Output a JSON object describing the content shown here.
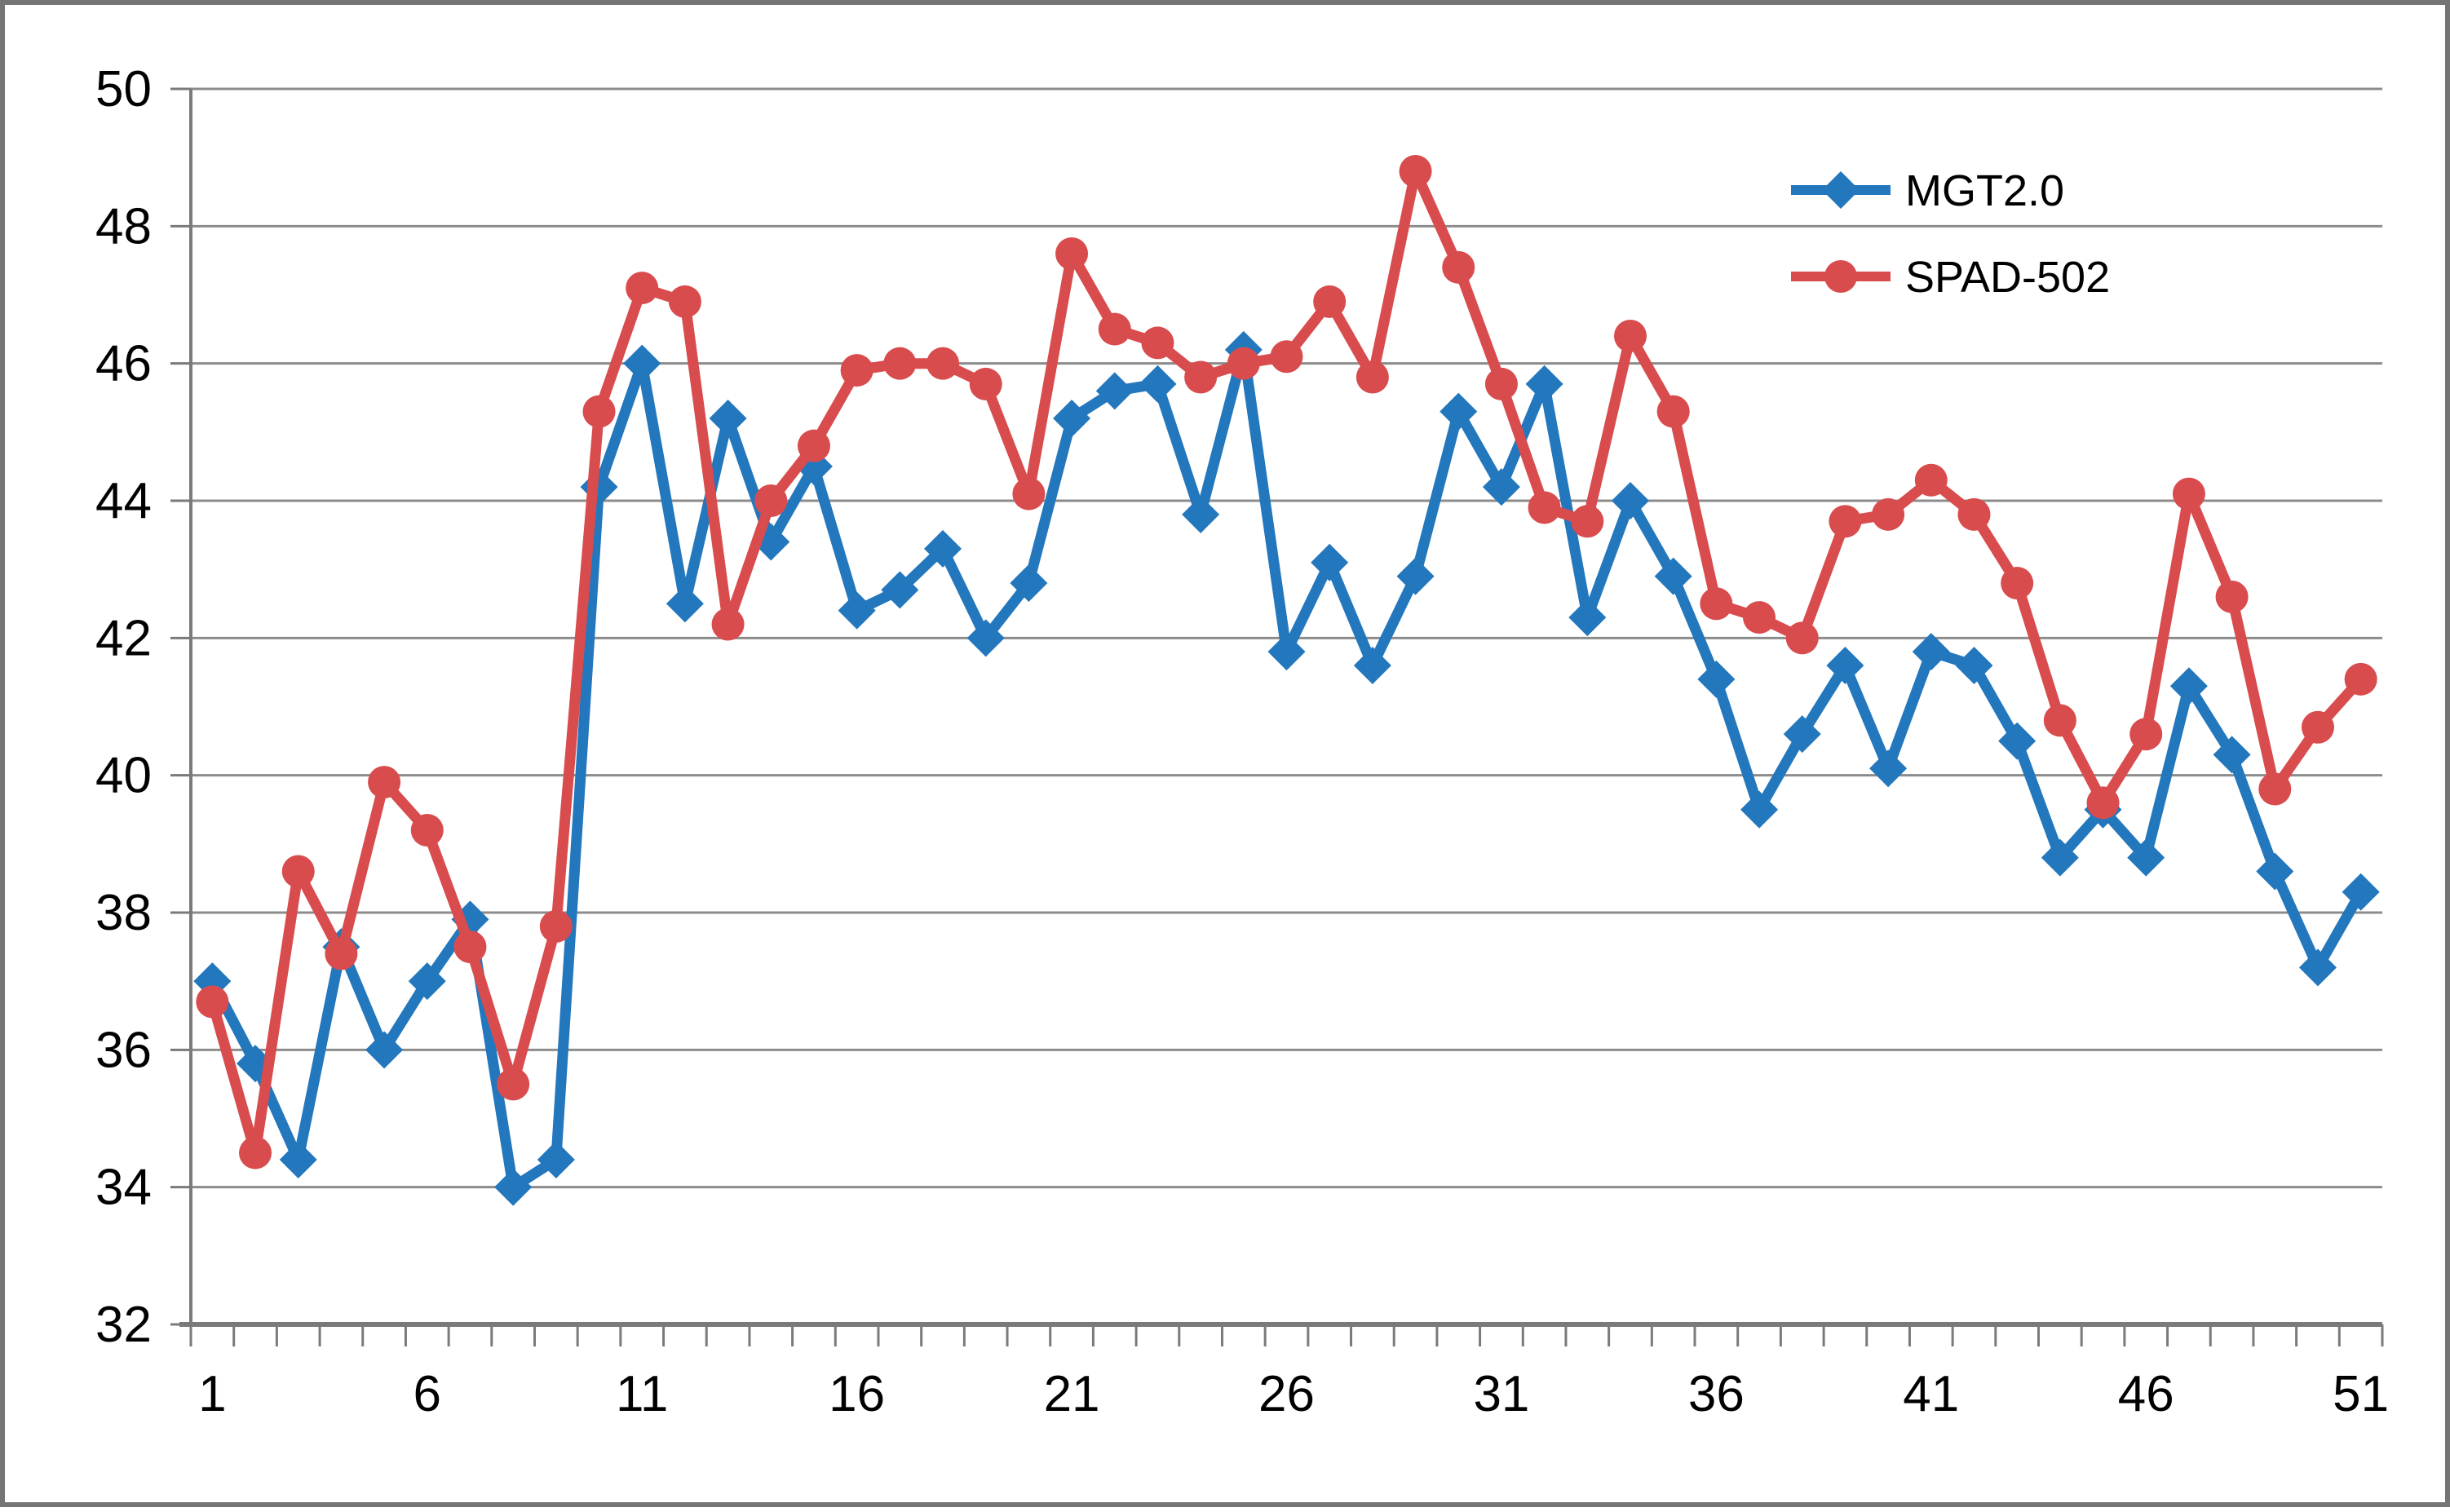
{
  "chart_data": {
    "type": "line",
    "title": "",
    "xlabel": "",
    "ylabel": "",
    "ylim": [
      32,
      50
    ],
    "y_tick_step": 2,
    "grid": "horizontal",
    "x_count": 51,
    "x_axis_tick_positions": [
      1,
      6,
      11,
      16,
      21,
      26,
      31,
      36,
      41,
      46,
      51
    ],
    "x_axis_tick_labels": [
      "1",
      "6",
      "11",
      "16",
      "21",
      "26",
      "31",
      "36",
      "41",
      "46",
      "51"
    ],
    "y_ticks": [
      32,
      34,
      36,
      38,
      40,
      42,
      44,
      46,
      48,
      50
    ],
    "y_axis_tick_labels": [
      "32",
      "34",
      "36",
      "38",
      "40",
      "42",
      "44",
      "46",
      "48",
      "50"
    ],
    "legend": {
      "position": "inside-upper-right",
      "items": [
        "MGT2.0",
        "SPAD-502"
      ]
    },
    "colors": {
      "mgt_blue": "#2377bd",
      "spad_red": "#d94c4e",
      "gridline": "#8c8c8c",
      "axis": "#7a7a7a",
      "tick_label": "#000000"
    },
    "series": [
      {
        "name": "MGT2.0",
        "color": "#2377bd",
        "marker": "diamond",
        "values": [
          37.0,
          35.8,
          34.4,
          37.5,
          36.0,
          37.0,
          37.9,
          34.0,
          34.4,
          44.2,
          46.0,
          42.5,
          45.2,
          43.4,
          44.5,
          42.4,
          42.7,
          43.3,
          42.0,
          42.8,
          45.2,
          45.6,
          45.7,
          43.8,
          46.2,
          41.8,
          43.1,
          41.6,
          42.9,
          45.3,
          44.2,
          45.7,
          42.3,
          44.0,
          42.9,
          41.4,
          39.5,
          40.6,
          41.6,
          40.1,
          41.8,
          41.6,
          40.5,
          38.8,
          39.5,
          38.8,
          41.3,
          40.3,
          38.6,
          37.2,
          38.3
        ]
      },
      {
        "name": "SPAD-502",
        "color": "#d94c4e",
        "marker": "circle",
        "values": [
          36.7,
          34.5,
          38.6,
          37.4,
          39.9,
          39.2,
          37.5,
          35.5,
          37.8,
          45.3,
          47.1,
          46.9,
          42.2,
          44.0,
          44.8,
          45.9,
          46.0,
          46.0,
          45.7,
          44.1,
          47.6,
          46.5,
          46.3,
          45.8,
          46.0,
          46.1,
          46.9,
          45.8,
          48.8,
          47.4,
          45.7,
          43.9,
          43.7,
          46.4,
          45.3,
          42.5,
          42.3,
          42.0,
          43.7,
          43.8,
          44.3,
          43.8,
          42.8,
          40.8,
          39.6,
          40.6,
          44.1,
          42.6,
          39.8,
          40.7,
          41.4
        ]
      }
    ]
  }
}
